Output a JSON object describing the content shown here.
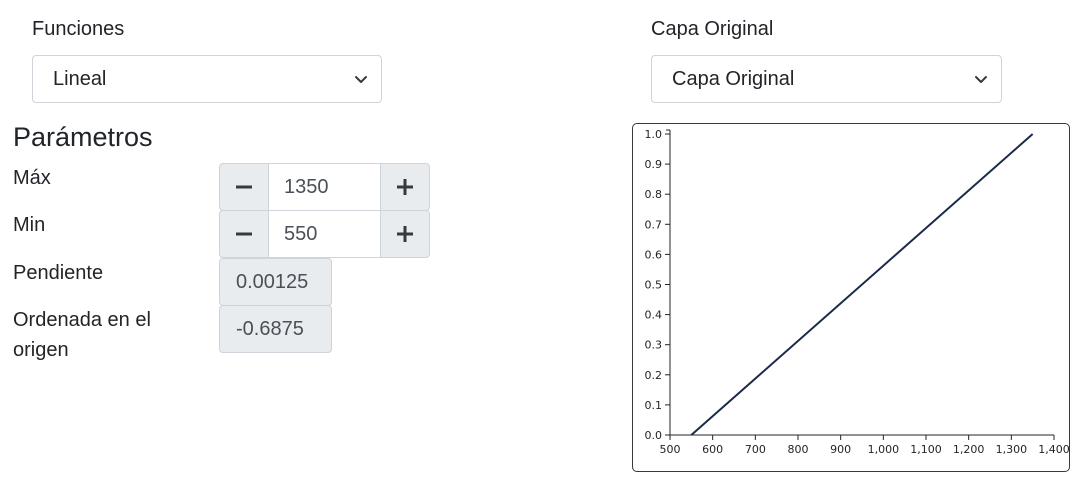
{
  "functions": {
    "label": "Funciones",
    "selected": "Lineal"
  },
  "layer": {
    "label": "Capa Original",
    "selected": "Capa Original"
  },
  "parameters": {
    "heading": "Parámetros",
    "max": {
      "label": "Máx",
      "value": "1350"
    },
    "min": {
      "label": "Min",
      "value": "550"
    },
    "slope": {
      "label": "Pendiente",
      "value": "0.00125"
    },
    "intercept": {
      "label": "Ordenada en el origen",
      "value": "-0.6875"
    }
  },
  "icons": {
    "select_arrow": "chevron-down-icon",
    "decrement": "minus-icon",
    "increment": "plus-icon"
  },
  "colors": {
    "line": "#1b2a4a",
    "readonly_bg": "#e9ecef",
    "border": "#ced4da"
  },
  "chart_data": {
    "type": "line",
    "x": [
      550,
      1350
    ],
    "y": [
      0.0,
      1.0
    ],
    "xlim": [
      500,
      1400
    ],
    "ylim": [
      0.0,
      1.0
    ],
    "x_ticks": [
      "500",
      "600",
      "700",
      "800",
      "900",
      "1,000",
      "1,100",
      "1,200",
      "1,300",
      "1,400"
    ],
    "y_ticks": [
      "0.0",
      "0.1",
      "0.2",
      "0.3",
      "0.4",
      "0.5",
      "0.6",
      "0.7",
      "0.8",
      "0.9",
      "1.0"
    ],
    "title": "",
    "xlabel": "",
    "ylabel": "",
    "grid": false
  }
}
